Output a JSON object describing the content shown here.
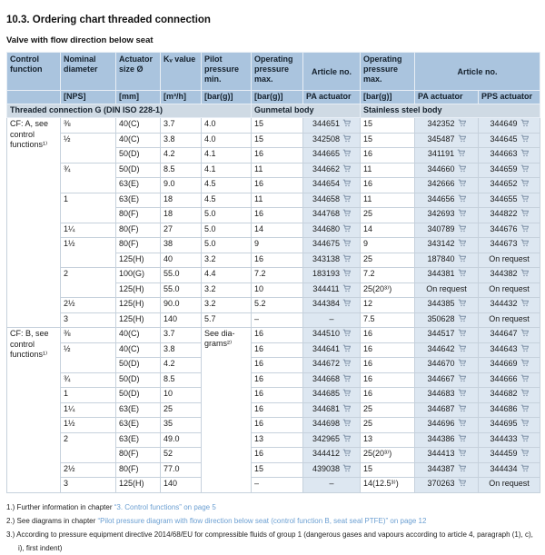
{
  "page": {
    "title": "10.3. Ordering chart threaded connection",
    "subtitle": "Valve with flow direction below seat"
  },
  "colors": {
    "header_bg": "#aac4de",
    "section_bg": "#cfdae4",
    "article_cell_bg": "#dde7f1",
    "link_blue": "#6b9fd2",
    "cart_icon": "#7b8ea4"
  },
  "table": {
    "header_row1": [
      "Control function",
      "Nominal diameter",
      "Actuator size Ø",
      "Kᵥ value",
      "Pilot pressure min.",
      "Operating pressure max.",
      "Article no.",
      "Operating pressure max.",
      "Article no."
    ],
    "header_row2": [
      "[NPS]",
      "[mm]",
      "[m³/h]",
      "[bar(g)]",
      "[bar(g)]",
      "PA actuator",
      "[bar(g)]",
      "PA actuator",
      "PPS actuator"
    ],
    "section_left": "Threaded connection G (DIN ISO 228-1)",
    "section_mid": "Gunmetal body",
    "section_right": "Stainless steel body",
    "groups": [
      {
        "control_function": "CF: A, see control functions¹⁾",
        "rows": [
          {
            "nps": "⅜",
            "nps_span": 1,
            "mm": "40(C)",
            "kv": "3.7",
            "pilot": "4.0",
            "gm_op": "15",
            "gm_article": "344651",
            "ss_op": "15",
            "ss_pa": "342352",
            "ss_pps": "344649"
          },
          {
            "nps": "½",
            "nps_span": 2,
            "mm": "40(C)",
            "kv": "3.8",
            "pilot": "4.0",
            "gm_op": "15",
            "gm_article": "342508",
            "ss_op": "15",
            "ss_pa": "345487",
            "ss_pps": "344645"
          },
          {
            "mm": "50(D)",
            "kv": "4.2",
            "pilot": "4.1",
            "gm_op": "16",
            "gm_article": "344665",
            "ss_op": "16",
            "ss_pa": "341191",
            "ss_pps": "344663"
          },
          {
            "nps": "¾",
            "nps_span": 2,
            "mm": "50(D)",
            "kv": "8.5",
            "pilot": "4.1",
            "gm_op": "11",
            "gm_article": "344662",
            "ss_op": "11",
            "ss_pa": "344660",
            "ss_pps": "344659"
          },
          {
            "mm": "63(E)",
            "kv": "9.0",
            "pilot": "4.5",
            "gm_op": "16",
            "gm_article": "344654",
            "ss_op": "16",
            "ss_pa": "342666",
            "ss_pps": "344652"
          },
          {
            "nps": "1",
            "nps_span": 2,
            "mm": "63(E)",
            "kv": "18",
            "pilot": "4.5",
            "gm_op": "11",
            "gm_article": "344658",
            "ss_op": "11",
            "ss_pa": "344656",
            "ss_pps": "344655"
          },
          {
            "mm": "80(F)",
            "kv": "18",
            "pilot": "5.0",
            "gm_op": "16",
            "gm_article": "344768",
            "ss_op": "25",
            "ss_pa": "342693",
            "ss_pps": "344822"
          },
          {
            "nps": "1¼",
            "nps_span": 1,
            "mm": "80(F)",
            "kv": "27",
            "pilot": "5.0",
            "gm_op": "14",
            "gm_article": "344680",
            "ss_op": "14",
            "ss_pa": "340789",
            "ss_pps": "344676"
          },
          {
            "nps": "1½",
            "nps_span": 2,
            "mm": "80(F)",
            "kv": "38",
            "pilot": "5.0",
            "gm_op": "9",
            "gm_article": "344675",
            "ss_op": "9",
            "ss_pa": "343142",
            "ss_pps": "344673"
          },
          {
            "mm": "125(H)",
            "kv": "40",
            "pilot": "3.2",
            "gm_op": "16",
            "gm_article": "343138",
            "ss_op": "25",
            "ss_pa": "187840",
            "ss_pps": "On request"
          },
          {
            "nps": "2",
            "nps_span": 2,
            "mm": "100(G)",
            "kv": "55.0",
            "pilot": "4.4",
            "gm_op": "7.2",
            "gm_article": "183193",
            "ss_op": "7.2",
            "ss_pa": "344381",
            "ss_pps": "344382"
          },
          {
            "mm": "125(H)",
            "kv": "55.0",
            "pilot": "3.2",
            "gm_op": "10",
            "gm_article": "344411",
            "ss_op": "25(20³⁾)",
            "ss_pa": "On request",
            "ss_pps": "On request"
          },
          {
            "nps": "2½",
            "nps_span": 1,
            "mm": "125(H)",
            "kv": "90.0",
            "pilot": "3.2",
            "gm_op": "5.2",
            "gm_article": "344384",
            "ss_op": "12",
            "ss_pa": "344385",
            "ss_pps": "344432"
          },
          {
            "nps": "3",
            "nps_span": 1,
            "mm": "125(H)",
            "kv": "140",
            "pilot": "5.7",
            "gm_op": "–",
            "gm_article": "–",
            "ss_op": "7.5",
            "ss_pa": "350628",
            "ss_pps": "On request"
          }
        ]
      },
      {
        "control_function": "CF: B, see control functions¹⁾",
        "pilot_note": "See dia-grams²⁾",
        "rows": [
          {
            "nps": "⅜",
            "nps_span": 1,
            "mm": "40(C)",
            "kv": "3.7",
            "gm_op": "16",
            "gm_article": "344510",
            "ss_op": "16",
            "ss_pa": "344517",
            "ss_pps": "344647"
          },
          {
            "nps": "½",
            "nps_span": 2,
            "mm": "40(C)",
            "kv": "3.8",
            "gm_op": "16",
            "gm_article": "344641",
            "ss_op": "16",
            "ss_pa": "344642",
            "ss_pps": "344643"
          },
          {
            "mm": "50(D)",
            "kv": "4.2",
            "gm_op": "16",
            "gm_article": "344672",
            "ss_op": "16",
            "ss_pa": "344670",
            "ss_pps": "344669"
          },
          {
            "nps": "¾",
            "nps_span": 1,
            "mm": "50(D)",
            "kv": "8.5",
            "gm_op": "16",
            "gm_article": "344668",
            "ss_op": "16",
            "ss_pa": "344667",
            "ss_pps": "344666"
          },
          {
            "nps": "1",
            "nps_span": 1,
            "mm": "50(D)",
            "kv": "10",
            "gm_op": "16",
            "gm_article": "344685",
            "ss_op": "16",
            "ss_pa": "344683",
            "ss_pps": "344682"
          },
          {
            "nps": "1¼",
            "nps_span": 1,
            "mm": "63(E)",
            "kv": "25",
            "gm_op": "16",
            "gm_article": "344681",
            "ss_op": "25",
            "ss_pa": "344687",
            "ss_pps": "344686"
          },
          {
            "nps": "1½",
            "nps_span": 1,
            "mm": "63(E)",
            "kv": "35",
            "gm_op": "16",
            "gm_article": "344698",
            "ss_op": "25",
            "ss_pa": "344696",
            "ss_pps": "344695"
          },
          {
            "nps": "2",
            "nps_span": 2,
            "mm": "63(E)",
            "kv": "49.0",
            "gm_op": "13",
            "gm_article": "342965",
            "ss_op": "13",
            "ss_pa": "344386",
            "ss_pps": "344433"
          },
          {
            "mm": "80(F)",
            "kv": "52",
            "gm_op": "16",
            "gm_article": "344412",
            "ss_op": "25(20³⁾)",
            "ss_pa": "344413",
            "ss_pps": "344459"
          },
          {
            "nps": "2½",
            "nps_span": 1,
            "mm": "80(F)",
            "kv": "77.0",
            "gm_op": "15",
            "gm_article": "439038",
            "ss_op": "15",
            "ss_pa": "344387",
            "ss_pps": "344434"
          },
          {
            "nps": "3",
            "nps_span": 1,
            "mm": "125(H)",
            "kv": "140",
            "gm_op": "–",
            "gm_article": "–",
            "ss_op": "14(12.5³⁾)",
            "ss_pa": "370263",
            "ss_pps": "On request"
          }
        ]
      }
    ]
  },
  "footnotes": [
    {
      "text": "1.) Further information in chapter ",
      "link": "“3. Control functions” on page 5"
    },
    {
      "text": "2.) See diagrams in chapter ",
      "link": "“Pilot pressure diagram with flow direction below seat (control function B, seat seal PTFE)” on page 12"
    },
    {
      "text": "3.) According to pressure equipment directive 2014/68/EU for compressible fluids of group 1 (dangerous gases and vapours according to article 4, paragraph (1), c), i), first indent)",
      "link": ""
    }
  ]
}
